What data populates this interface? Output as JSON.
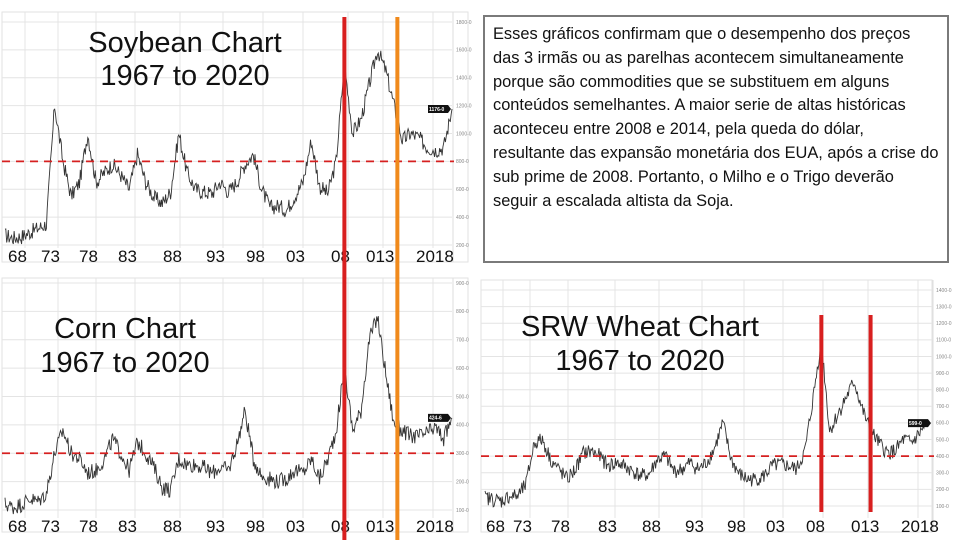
{
  "note": {
    "text": "Esses gráficos confirmam que o desempenho dos preços das 3 irmãs ou as parelhas acontecem simultaneamente porque são commodities que se substituem em alguns conteúdos semelhantes. A maior serie de altas históricas aconteceu entre 2008 e 2014, pela queda do dólar, resultante das expansão monetária dos EUA, após a crise do sub prime de 2008. Portanto, o Milho e o Trigo deverão seguir a escalada altista da Soja."
  },
  "colors": {
    "line": "#333333",
    "reference": "#d62020",
    "marker_red": "#d81f1f",
    "marker_orange": "#f08a1c",
    "grid": "#e4e4e4"
  },
  "chart_data": [
    {
      "type": "line",
      "id": "soybean",
      "title": [
        "Soybean Chart",
        "1967 to 2020"
      ],
      "year_labels": [
        "68",
        "73",
        "78",
        "83",
        "88",
        "93",
        "98",
        "03",
        "08",
        "013",
        "2018"
      ],
      "y_ticks": [
        "200-0",
        "400-0",
        "600-0",
        "800-0",
        "1000-0",
        "1200-0",
        "1400-0",
        "1600-0",
        "1800-0"
      ],
      "tick_values": [
        200,
        400,
        600,
        800,
        1000,
        1200,
        1400,
        1600,
        1800
      ],
      "ylim": [
        200,
        1800
      ],
      "last_price": "1176-0",
      "reference_level": 800,
      "marker_years": [
        2008,
        2014.4
      ],
      "x": [
        1967,
        1968,
        1969,
        1970,
        1971,
        1972,
        1973,
        1974,
        1975,
        1976,
        1977,
        1978,
        1979,
        1980,
        1981,
        1982,
        1983,
        1984,
        1985,
        1986,
        1987,
        1988,
        1989,
        1990,
        1991,
        1992,
        1993,
        1994,
        1995,
        1996,
        1997,
        1998,
        1999,
        2000,
        2001,
        2002,
        2003,
        2004,
        2005,
        2006,
        2007,
        2008,
        2009,
        2010,
        2011,
        2012,
        2013,
        2014,
        2015,
        2016,
        2017,
        2018,
        2019,
        2020,
        2021
      ],
      "values": [
        270,
        250,
        260,
        290,
        320,
        350,
        1200,
        800,
        550,
        650,
        1000,
        650,
        720,
        780,
        700,
        600,
        850,
        650,
        540,
        500,
        580,
        1000,
        720,
        600,
        580,
        570,
        650,
        580,
        650,
        780,
        850,
        600,
        470,
        480,
        450,
        550,
        650,
        950,
        620,
        570,
        800,
        1500,
        1000,
        1100,
        1350,
        1600,
        1450,
        1200,
        950,
        1000,
        970,
        900,
        880,
        900,
        1176
      ]
    },
    {
      "type": "line",
      "id": "corn",
      "title": [
        "Corn Chart",
        "1967 to 2020"
      ],
      "year_labels": [
        "68",
        "73",
        "78",
        "83",
        "88",
        "93",
        "98",
        "03",
        "08",
        "013",
        "2018"
      ],
      "y_ticks": [
        "100-0",
        "200-0",
        "300-0",
        "400-0",
        "500-0",
        "600-0",
        "700-0",
        "800-0",
        "900-0"
      ],
      "tick_values": [
        100,
        200,
        300,
        400,
        500,
        600,
        700,
        800,
        900
      ],
      "ylim": [
        100,
        900
      ],
      "last_price": "424-6",
      "reference_level": 300,
      "marker_years": [
        2008,
        2014.4
      ],
      "x": [
        1967,
        1968,
        1969,
        1970,
        1971,
        1972,
        1973,
        1974,
        1975,
        1976,
        1977,
        1978,
        1979,
        1980,
        1981,
        1982,
        1983,
        1984,
        1985,
        1986,
        1987,
        1988,
        1989,
        1990,
        1991,
        1992,
        1993,
        1994,
        1995,
        1996,
        1997,
        1998,
        1999,
        2000,
        2001,
        2002,
        2003,
        2004,
        2005,
        2006,
        2007,
        2008,
        2009,
        2010,
        2011,
        2012,
        2013,
        2014,
        2015,
        2016,
        2017,
        2018,
        2019,
        2020,
        2021
      ],
      "values": [
        120,
        110,
        120,
        140,
        130,
        160,
        300,
        380,
        300,
        280,
        230,
        240,
        280,
        350,
        300,
        240,
        340,
        300,
        250,
        180,
        170,
        280,
        260,
        260,
        250,
        230,
        250,
        240,
        330,
        450,
        280,
        220,
        210,
        200,
        210,
        240,
        230,
        280,
        210,
        280,
        380,
        600,
        380,
        450,
        700,
        780,
        580,
        400,
        380,
        360,
        360,
        370,
        390,
        350,
        424.75
      ]
    },
    {
      "type": "line",
      "id": "wheat",
      "title": [
        "SRW Wheat Chart",
        "1967 to 2020"
      ],
      "year_labels": [
        "68",
        "73",
        "78",
        "83",
        "88",
        "93",
        "98",
        "03",
        "08",
        "013",
        "2018"
      ],
      "y_ticks": [
        "100-0",
        "200-0",
        "300-0",
        "400-0",
        "500-0",
        "600-0",
        "700-0",
        "800-0",
        "900-0",
        "1000-0",
        "1100-0",
        "1200-0",
        "1300-0",
        "1400-0"
      ],
      "tick_values": [
        100,
        200,
        300,
        400,
        500,
        600,
        700,
        800,
        900,
        1000,
        1100,
        1200,
        1300,
        1400
      ],
      "ylim": [
        100,
        1400
      ],
      "last_price": "599-0",
      "reference_level": 400,
      "marker_years": [
        2008,
        2014
      ],
      "x": [
        1967,
        1968,
        1969,
        1970,
        1971,
        1972,
        1973,
        1974,
        1975,
        1976,
        1977,
        1978,
        1979,
        1980,
        1981,
        1982,
        1983,
        1984,
        1985,
        1986,
        1987,
        1988,
        1989,
        1990,
        1991,
        1992,
        1993,
        1994,
        1995,
        1996,
        1997,
        1998,
        1999,
        2000,
        2001,
        2002,
        2003,
        2004,
        2005,
        2006,
        2007,
        2008,
        2009,
        2010,
        2011,
        2012,
        2013,
        2014,
        2015,
        2016,
        2017,
        2018,
        2019,
        2020,
        2021
      ],
      "values": [
        150,
        140,
        130,
        160,
        160,
        230,
        480,
        500,
        380,
        320,
        260,
        320,
        420,
        430,
        400,
        340,
        360,
        340,
        310,
        280,
        290,
        380,
        400,
        310,
        320,
        360,
        320,
        360,
        450,
        600,
        380,
        290,
        260,
        260,
        280,
        340,
        350,
        340,
        320,
        430,
        750,
        1100,
        550,
        650,
        750,
        850,
        680,
        550,
        480,
        420,
        430,
        500,
        480,
        540,
        599
      ]
    }
  ]
}
